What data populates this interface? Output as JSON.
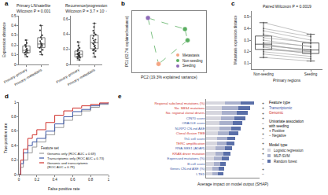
{
  "chart_data": [
    {
      "panel": "a",
      "type": "box",
      "ylabel": "Expression distance",
      "subplots": [
        {
          "title": [
            "Primary LN/satellite",
            "Wilcoxon P = 0.001"
          ],
          "categories": [
            "Primary–primary",
            "Primary–metastasis"
          ],
          "ylim": [
            0,
            0.5
          ],
          "yticks": [
            0,
            0.1,
            0.2,
            0.3,
            0.4,
            0.5
          ],
          "values": [
            [
              0.08,
              0.1,
              0.12,
              0.13,
              0.15,
              0.16,
              0.18,
              0.2,
              0.22,
              0.25,
              0.12,
              0.14
            ],
            [
              0.1,
              0.13,
              0.15,
              0.18,
              0.2,
              0.22,
              0.24,
              0.26,
              0.28,
              0.3,
              0.35,
              0.4,
              0.19,
              0.21,
              0.17
            ]
          ]
        },
        {
          "title": [
            "Recurrence/progression",
            "Wilcoxon P = 3.7 × 10⁻⁷"
          ],
          "categories": [
            "Primary–primary",
            "Primary–metastasis"
          ],
          "ylim": [
            0,
            0.65
          ],
          "yticks": [
            0,
            0.2,
            0.4,
            0.6
          ],
          "values": [
            [
              0.06,
              0.08,
              0.1,
              0.11,
              0.12,
              0.13,
              0.14,
              0.15,
              0.16,
              0.18,
              0.2,
              0.22,
              0.25,
              0.3,
              0.12,
              0.14,
              0.1,
              0.09
            ],
            [
              0.1,
              0.15,
              0.18,
              0.2,
              0.22,
              0.25,
              0.28,
              0.3,
              0.33,
              0.35,
              0.38,
              0.4,
              0.45,
              0.5,
              0.55,
              0.27,
              0.24,
              0.32,
              0.19,
              0.42
            ]
          ]
        }
      ]
    },
    {
      "panel": "b",
      "type": "scatter",
      "xlabel": "PC2 (19.3% explained variance)",
      "ylabel": "PC1 (62.7% explained variance)",
      "xlim": [
        -0.3,
        1.1
      ],
      "ylim": [
        -1.1,
        1.1
      ],
      "tick_labels": false,
      "legend": "bottom right",
      "links": [
        [
          0,
          0.85,
          0.7,
          0.45
        ],
        [
          0.7,
          0.45,
          0.75,
          0.05
        ],
        [
          0,
          0.85,
          0.2,
          -0.8
        ],
        [
          0.75,
          0.05,
          0.2,
          -0.8
        ]
      ],
      "links_color": "#5aae61",
      "line_style": "dashed",
      "series": [
        {
          "name": "Metastasis",
          "color": "#f4a582",
          "x": [
            0.2
          ],
          "y": [
            -0.8
          ]
        },
        {
          "name": "Non-seeding",
          "color": "#5aae61",
          "x": [
            0.7,
            0.75
          ],
          "y": [
            0.45,
            0.05
          ]
        },
        {
          "name": "Seeding",
          "color": "#8e6bb8",
          "x": [
            0
          ],
          "y": [
            0.85
          ]
        }
      ]
    },
    {
      "panel": "c",
      "type": "paired_box",
      "title": "Paired Wilcoxon P = 0.0019",
      "categories": [
        "Non-seeding",
        "Seeding"
      ],
      "xlabel": "Primary regions",
      "ylabel": "Metastasis expression distance",
      "ylim": [
        0.05,
        0.55
      ],
      "yticks": [
        0.1,
        0.2,
        0.3,
        0.4,
        0.5
      ],
      "values": [
        [
          0.15,
          0.18,
          0.2,
          0.22,
          0.24,
          0.25,
          0.27,
          0.28,
          0.3,
          0.32,
          0.35,
          0.38,
          0.4,
          0.45,
          0.22,
          0.26
        ],
        [
          0.12,
          0.14,
          0.16,
          0.2,
          0.18,
          0.22,
          0.2,
          0.25,
          0.24,
          0.28,
          0.27,
          0.3,
          0.33,
          0.35,
          0.19,
          0.21
        ]
      ]
    },
    {
      "panel": "d",
      "type": "line",
      "xlabel": "False positive rate",
      "ylabel": "True positive rate",
      "xlim": [
        0,
        1
      ],
      "ylim": [
        0,
        1
      ],
      "xticks": [
        0,
        0.2,
        0.4,
        0.6,
        0.8,
        1
      ],
      "yticks": [
        0,
        0.2,
        0.4,
        0.6,
        0.8,
        1
      ],
      "legend": "bottom right",
      "legend_title": "Feature set",
      "series": [
        {
          "name": "Genomic only (ROC AUC = 0.69)",
          "color": "#9a9a9a",
          "x": [
            0,
            0.02,
            0.05,
            0.1,
            0.15,
            0.2,
            0.3,
            0.4,
            0.5,
            0.6,
            0.7,
            0.8,
            0.9,
            1
          ],
          "y": [
            0,
            0.1,
            0.2,
            0.3,
            0.38,
            0.45,
            0.55,
            0.65,
            0.75,
            0.82,
            0.88,
            0.93,
            0.97,
            1
          ]
        },
        {
          "name": "Transcriptomic only (ROC AUC = 0.73)",
          "color": "#3b55a5",
          "x": [
            0,
            0.02,
            0.05,
            0.1,
            0.15,
            0.2,
            0.3,
            0.4,
            0.5,
            0.6,
            0.7,
            0.8,
            0.9,
            1
          ],
          "y": [
            0,
            0.15,
            0.3,
            0.4,
            0.45,
            0.5,
            0.6,
            0.7,
            0.8,
            0.87,
            0.9,
            0.95,
            0.98,
            1
          ]
        },
        {
          "name": "Genomic and transcriptomic\n(ROC AUC = 0.79)",
          "color": "#d0302b",
          "x": [
            0,
            0.02,
            0.05,
            0.1,
            0.15,
            0.2,
            0.3,
            0.4,
            0.5,
            0.6,
            0.7,
            0.8,
            0.9,
            1
          ],
          "y": [
            0,
            0.2,
            0.35,
            0.5,
            0.55,
            0.62,
            0.72,
            0.82,
            0.88,
            0.92,
            0.95,
            0.97,
            0.99,
            1
          ]
        }
      ]
    },
    {
      "panel": "e",
      "type": "bar",
      "orientation": "horizontal",
      "stacked": true,
      "tick_labels": "y",
      "xlabel": "Average impact on model output (SHAP)",
      "xlim": [
        0,
        1
      ],
      "categories": [
        "Regional subclonal mutations (%)",
        "No. SBS4 mutations",
        "No. regional clonal drivers",
        "CIN70 score",
        "ORACLE score",
        "NLRP2 CN-ind ASE",
        "Clonal illusion TMB",
        "Th1 cell score",
        "TERC amplification",
        "RNA-SBS1 (ADAR)",
        "KRAS driver mutation",
        "Expressed mutations (%)",
        "B cell score",
        "Genes CN-ind ASE (%)",
        "I-TED"
      ],
      "feature_types": [
        "Genomic",
        "Genomic",
        "Genomic",
        "Transcriptomic",
        "Transcriptomic",
        "Transcriptomic",
        "Genomic",
        "Transcriptomic",
        "Genomic",
        "Transcriptomic",
        "Genomic",
        "Transcriptomic",
        "Transcriptomic",
        "Transcriptomic",
        "Transcriptomic"
      ],
      "associations": [
        "+",
        "+",
        "+",
        "+",
        "−",
        "+",
        "+",
        "−",
        "+",
        "+",
        "+",
        "−",
        "−",
        "+",
        "−"
      ],
      "feature_type_title": "Feature type",
      "feature_type_legend": [
        {
          "name": "Transcriptomic",
          "color": "#3b55a5"
        },
        {
          "name": "Genomic",
          "color": "#d0302b"
        }
      ],
      "association_title": "Univariate association\nwith seeding",
      "association_legend": [
        {
          "symbol": "+",
          "name": "Positive"
        },
        {
          "symbol": "−",
          "name": "Negative"
        }
      ],
      "legend_title": "Model type",
      "series": [
        {
          "name": "Logistic regression",
          "color": "#d6d6de",
          "values": [
            0.35,
            0.3,
            0.3,
            0.28,
            0.25,
            0.25,
            0.22,
            0.2,
            0.2,
            0.18,
            0.18,
            0.15,
            0.15,
            0.12,
            0.12
          ]
        },
        {
          "name": "MLP-SVM",
          "color": "#a9b0cc",
          "values": [
            0.3,
            0.3,
            0.28,
            0.25,
            0.25,
            0.22,
            0.2,
            0.2,
            0.18,
            0.18,
            0.15,
            0.15,
            0.12,
            0.12,
            0.1
          ]
        },
        {
          "name": "Random forest",
          "color": "#5a6fa8",
          "values": [
            0.25,
            0.22,
            0.2,
            0.2,
            0.18,
            0.18,
            0.18,
            0.15,
            0.15,
            0.12,
            0.12,
            0.12,
            0.1,
            0.1,
            0.1
          ]
        }
      ]
    }
  ]
}
